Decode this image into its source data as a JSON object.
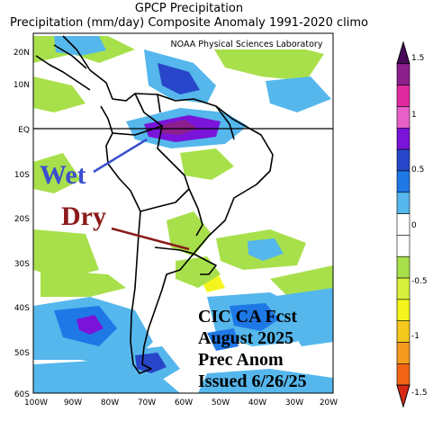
{
  "title_line1": "GPCP Precipitation",
  "title_line2": "Precipitation (mm/day) Composite Anomaly 1991-2020 climo",
  "credit": "NOAA Physical Sciences Laboratory",
  "lat_labels": [
    "20N",
    "10N",
    "EQ",
    "10S",
    "20S",
    "30S",
    "40S",
    "50S",
    "60S"
  ],
  "lon_labels": [
    "100W",
    "90W",
    "80W",
    "70W",
    "60W",
    "50W",
    "40W",
    "30W",
    "20W"
  ],
  "wet_label": "Wet",
  "dry_label": "Dry",
  "forecast_text": [
    "CIC CA Fcst",
    "August 2025",
    "Prec Anom",
    "Issued 6/26/25"
  ],
  "colorbar": {
    "ticks": [
      "1.5",
      "1",
      "0.5",
      "0",
      "-0.5",
      "-1",
      "-1.5"
    ],
    "colors": [
      "#4a0a5a",
      "#8c1f8c",
      "#e0299f",
      "#e85fc8",
      "#7a14d9",
      "#2846c9",
      "#1e78e6",
      "#55b7ec",
      "#ffffff",
      "#ffffff",
      "#a8e04b",
      "#d8f03c",
      "#f5f51e",
      "#f5c81e",
      "#f59b1e",
      "#f06414",
      "#d72814"
    ]
  },
  "colors": {
    "wet": "#3a4fd0",
    "dry": "#8b1a1a",
    "land_line": "#000000"
  }
}
